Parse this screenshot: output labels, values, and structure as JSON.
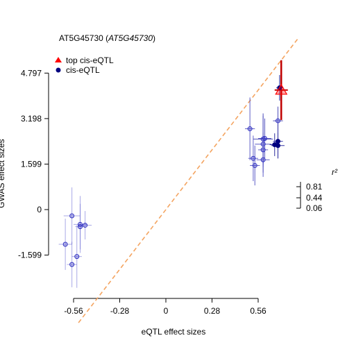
{
  "chart_data": {
    "type": "scatter",
    "title": "AT5G45730",
    "title_italic": "AT5G45730",
    "xlabel": "eQTL effect sizes",
    "ylabel": "GWAS effect sizes",
    "xlim": [
      -0.7,
      0.8
    ],
    "ylim": [
      -3.1,
      5.6
    ],
    "x_ticks": [
      -0.56,
      -0.28,
      0,
      0.28,
      0.56
    ],
    "x_tick_labels": [
      "-0.56",
      "-0.28",
      "0",
      "0.28",
      "0.56"
    ],
    "y_ticks": [
      -1.599,
      0,
      1.599,
      3.198,
      4.797
    ],
    "y_tick_labels": [
      "-1.599",
      "0",
      "1.599",
      "3.198",
      "4.797"
    ],
    "legend": {
      "position": "top-left",
      "entries": [
        {
          "label": "top cis-eQTL",
          "color": "#ff0000",
          "marker": "triangle"
        },
        {
          "label": "cis-eQTL",
          "color": "#000080",
          "marker": "circle"
        }
      ]
    },
    "r2_legend": {
      "title": "r²",
      "labels": [
        "0.81",
        "0.44",
        "0.06"
      ]
    },
    "reference_line": {
      "slope": 7.5,
      "intercept": 0,
      "color": "#f4a460",
      "style": "dashed"
    },
    "top_point": {
      "x": 0.7,
      "y": 4.2,
      "x_err": 0.04,
      "y_err": 1.05
    },
    "points": [
      {
        "x": 0.69,
        "y": 4.28,
        "x_err": 0.02,
        "y_err": 0.45,
        "r2": 0.9
      },
      {
        "x": 0.68,
        "y": 3.12,
        "x_err": 0.03,
        "y_err": 0.5,
        "r2": 0.6
      },
      {
        "x": 0.51,
        "y": 2.84,
        "x_err": 0.03,
        "y_err": 1.1,
        "r2": 0.5
      },
      {
        "x": 0.59,
        "y": 2.48,
        "x_err": 0.06,
        "y_err": 0.9,
        "r2": 0.6
      },
      {
        "x": 0.6,
        "y": 2.5,
        "x_err": 0.04,
        "y_err": 0.7,
        "r2": 0.55
      },
      {
        "x": 0.59,
        "y": 2.3,
        "x_err": 0.05,
        "y_err": 1.0,
        "r2": 0.5
      },
      {
        "x": 0.68,
        "y": 2.4,
        "x_err": 0.03,
        "y_err": 0.6,
        "r2": 0.75
      },
      {
        "x": 0.66,
        "y": 2.28,
        "x_err": 0.03,
        "y_err": 0.4,
        "r2": 0.85
      },
      {
        "x": 0.68,
        "y": 2.25,
        "x_err": 0.04,
        "y_err": 0.45,
        "r2": 0.8
      },
      {
        "x": 0.59,
        "y": 2.1,
        "x_err": 0.03,
        "y_err": 0.6,
        "r2": 0.5
      },
      {
        "x": 0.53,
        "y": 1.8,
        "x_err": 0.03,
        "y_err": 0.8,
        "r2": 0.45
      },
      {
        "x": 0.59,
        "y": 1.75,
        "x_err": 0.04,
        "y_err": 0.6,
        "r2": 0.5
      },
      {
        "x": 0.54,
        "y": 1.55,
        "x_err": 0.03,
        "y_err": 0.7,
        "r2": 0.5
      },
      {
        "x": -0.57,
        "y": -0.22,
        "x_err": 0.05,
        "y_err": 1.0,
        "r2": 0.15
      },
      {
        "x": -0.52,
        "y": -0.52,
        "x_err": 0.04,
        "y_err": 1.0,
        "r2": 0.12
      },
      {
        "x": -0.52,
        "y": -0.6,
        "x_err": 0.03,
        "y_err": 0.8,
        "r2": 0.12
      },
      {
        "x": -0.49,
        "y": -0.55,
        "x_err": 0.04,
        "y_err": 0.5,
        "r2": 0.15
      },
      {
        "x": -0.61,
        "y": -1.22,
        "x_err": 0.04,
        "y_err": 0.9,
        "r2": 0.12
      },
      {
        "x": -0.54,
        "y": -1.65,
        "x_err": 0.03,
        "y_err": 1.1,
        "r2": 0.12
      },
      {
        "x": -0.57,
        "y": -1.93,
        "x_err": 0.03,
        "y_err": 0.8,
        "r2": 0.12
      }
    ]
  }
}
